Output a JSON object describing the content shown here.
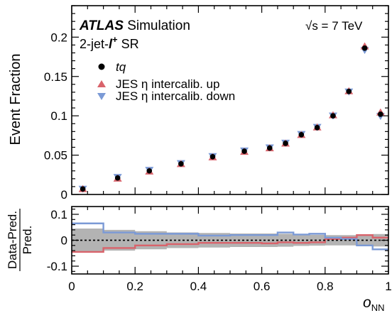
{
  "chart_data": {
    "type": "scatter",
    "experiment": "ATLAS",
    "experiment_suffix": "Simulation",
    "energy_label": "√s = 7 TeV",
    "region_label": "2-jet-l⁺ SR",
    "region_prefix": "2-jet-",
    "region_lep": "l",
    "region_sup": "+",
    "region_suffix": " SR",
    "ylabel": "Event Fraction",
    "xlabel": "o",
    "xlabel_sub": "NN",
    "ratio_ylabel_num": "Data-Pred.",
    "ratio_ylabel_den": "Pred.",
    "xlim": [
      0,
      1
    ],
    "ylim": [
      0,
      0.24
    ],
    "ratio_ylim": [
      -0.13,
      0.13
    ],
    "x_ticks": [
      "0",
      "0.2",
      "0.4",
      "0.6",
      "0.8",
      "1"
    ],
    "y_ticks": [
      "0",
      "0.05",
      "0.1",
      "0.15",
      "0.2"
    ],
    "ratio_y_ticks": [
      "-0.1",
      "0",
      "0.1"
    ],
    "x_ticks_values": [
      0,
      0.2,
      0.4,
      0.6,
      0.8,
      1
    ],
    "y_ticks_values": [
      0,
      0.05,
      0.1,
      0.15,
      0.2
    ],
    "ratio_y_ticks_values": [
      -0.1,
      0,
      0.1
    ],
    "x_centers": [
      0.035,
      0.145,
      0.245,
      0.345,
      0.445,
      0.545,
      0.625,
      0.675,
      0.725,
      0.775,
      0.825,
      0.875,
      0.925,
      0.975
    ],
    "bin_edges": [
      0,
      0.1,
      0.2,
      0.3,
      0.4,
      0.5,
      0.6,
      0.65,
      0.7,
      0.75,
      0.8,
      0.85,
      0.9,
      0.95,
      1.0
    ],
    "series": [
      {
        "name": "tq",
        "marker": "circle",
        "color": "#000000",
        "values": [
          0.007,
          0.021,
          0.03,
          0.039,
          0.048,
          0.055,
          0.059,
          0.065,
          0.076,
          0.085,
          0.1,
          0.131,
          0.186,
          0.102
        ]
      },
      {
        "name": "JES η intercalib. up",
        "marker": "triangle-up",
        "color": "#d9636b",
        "values": [
          0.0067,
          0.02,
          0.029,
          0.0385,
          0.047,
          0.054,
          0.0585,
          0.0645,
          0.0755,
          0.085,
          0.1005,
          0.131,
          0.188,
          0.104
        ]
      },
      {
        "name": "JES η intercalib. down",
        "marker": "triangle-down",
        "color": "#7b9ad6",
        "values": [
          0.0075,
          0.0225,
          0.0315,
          0.04,
          0.049,
          0.056,
          0.06,
          0.066,
          0.077,
          0.086,
          0.1005,
          0.131,
          0.184,
          0.1
        ]
      }
    ],
    "ratio_band": {
      "color": "#b3b3b3",
      "values": [
        0.045,
        0.04,
        0.035,
        0.03,
        0.028,
        0.026,
        0.026,
        0.025,
        0.022,
        0.021,
        0.02,
        0.02,
        0.02,
        0.024
      ]
    },
    "ratio_series": [
      {
        "name": "JES η intercalib. up",
        "color": "#d9636b",
        "values": [
          -0.045,
          -0.03,
          -0.02,
          -0.015,
          -0.01,
          -0.01,
          -0.012,
          -0.008,
          -0.01,
          -0.008,
          0.005,
          0.01,
          0.02,
          0.01
        ]
      },
      {
        "name": "JES η intercalib. down",
        "color": "#7b9ad6",
        "values": [
          0.065,
          0.03,
          0.025,
          0.025,
          0.018,
          0.02,
          0.02,
          0.03,
          0.022,
          0.025,
          0.01,
          0.005,
          -0.02,
          -0.035
        ]
      }
    ]
  }
}
